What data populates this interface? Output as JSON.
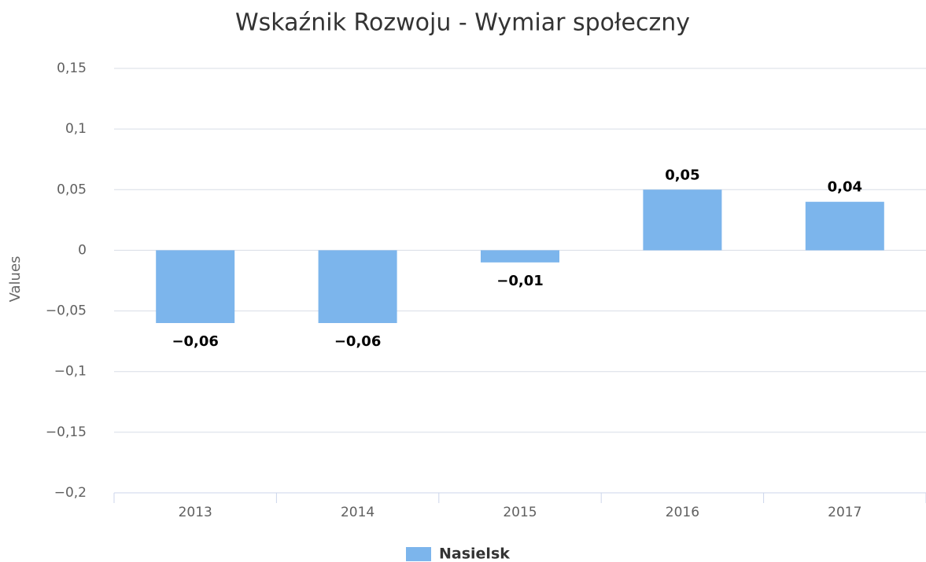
{
  "chart_data": {
    "type": "bar",
    "title": "Wskaźnik Rozwoju - Wymiar społeczny",
    "y_label": "Values",
    "categories": [
      "2013",
      "2014",
      "2015",
      "2016",
      "2017"
    ],
    "series": [
      {
        "name": "Nasielsk",
        "color": "#7cb5ec",
        "values": [
          -0.06,
          -0.06,
          -0.01,
          0.05,
          0.04
        ],
        "value_labels": [
          "−0,06",
          "−0,06",
          "−0,01",
          "0,05",
          "0,04"
        ]
      }
    ],
    "ylim": [
      -0.2,
      0.15
    ],
    "yticks": [
      {
        "value": -0.2,
        "label": "−0,2"
      },
      {
        "value": -0.15,
        "label": "−0,15"
      },
      {
        "value": -0.1,
        "label": "−0,1"
      },
      {
        "value": -0.05,
        "label": "−0,05"
      },
      0,
      {
        "value": 0.05,
        "label": "0,05"
      },
      {
        "value": 0.1,
        "label": "0,1"
      },
      {
        "value": 0.15,
        "label": "0,15"
      }
    ],
    "grid": true,
    "legend": "bottom"
  }
}
